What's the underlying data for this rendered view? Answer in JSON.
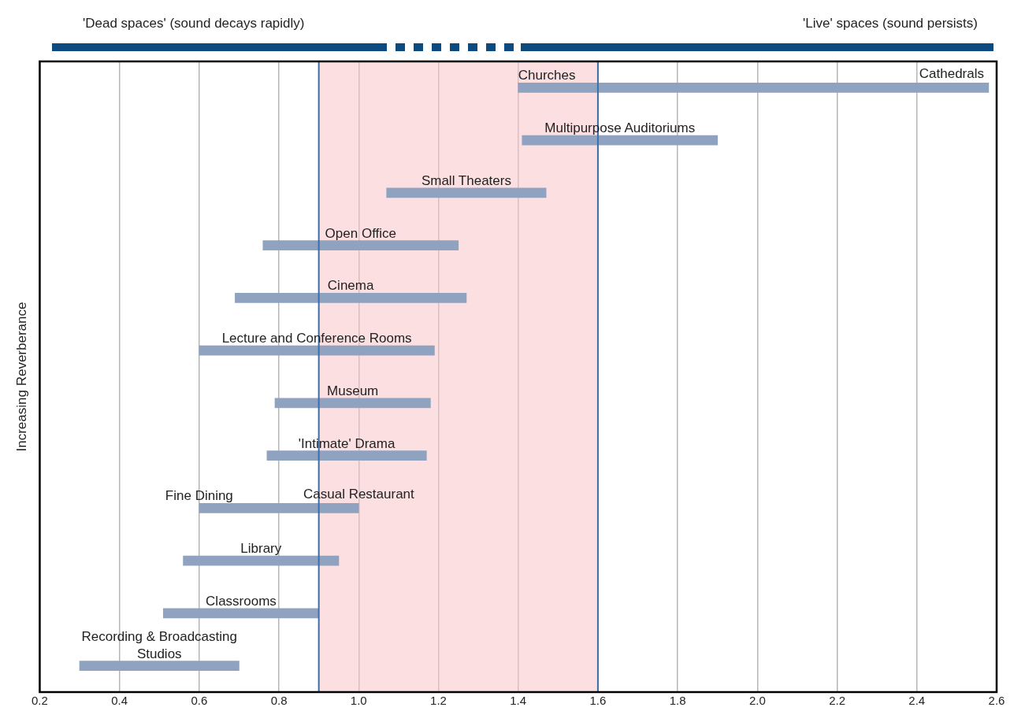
{
  "chart_data": {
    "type": "bar",
    "orientation": "horizontal",
    "ylabel": "Increasing Reverberance",
    "categories": [
      "Churches",
      "Multipurpose Auditoriums",
      "Small Theaters",
      "Open Office",
      "Cinema",
      "Lecture and Conference Rooms",
      "Museum",
      "'Intimate' Drama",
      "Fine Dining",
      "Library",
      "Classrooms",
      "Recording & Broadcasting Studios"
    ],
    "base": [
      1.4,
      1.41,
      1.07,
      0.76,
      0.69,
      0.6,
      0.79,
      0.77,
      0.6,
      0.56,
      0.51,
      0.3
    ],
    "values": [
      1.18,
      0.49,
      0.4,
      0.49,
      0.58,
      0.59,
      0.39,
      0.4,
      0.4,
      0.39,
      0.39,
      0.4
    ],
    "color": "#8fa3c0",
    "xlim": [
      0.2,
      2.6
    ],
    "xticks": [
      {
        "value": 0.2,
        "label": "0.2"
      },
      {
        "value": 0.4,
        "label": "0.4"
      },
      {
        "value": 0.6,
        "label": "0.6"
      },
      {
        "value": 0.8,
        "label": "0.8"
      },
      {
        "value": 1.0,
        "label": "1.0"
      },
      {
        "value": 1.2,
        "label": "1.2"
      },
      {
        "value": 1.4,
        "label": "1.4"
      },
      {
        "value": 1.6,
        "label": "1.6"
      },
      {
        "value": 1.8,
        "label": "1.8"
      },
      {
        "value": 2.0,
        "label": "2.0"
      },
      {
        "value": 2.2,
        "label": "2.2"
      },
      {
        "value": 2.4,
        "label": "2.4"
      },
      {
        "value": 2.6,
        "label": "2.6"
      }
    ],
    "grid": "x",
    "legend": false,
    "bands": [
      {
        "axis": "x",
        "from": 0.9,
        "to": 1.6,
        "color": "#f9c5c8"
      }
    ],
    "annotations": [
      "'Dead spaces' (sound decays rapidly)",
      "'Live' spaces (sound persists)",
      "Cathedrals",
      "Casual Restaurant"
    ]
  }
}
